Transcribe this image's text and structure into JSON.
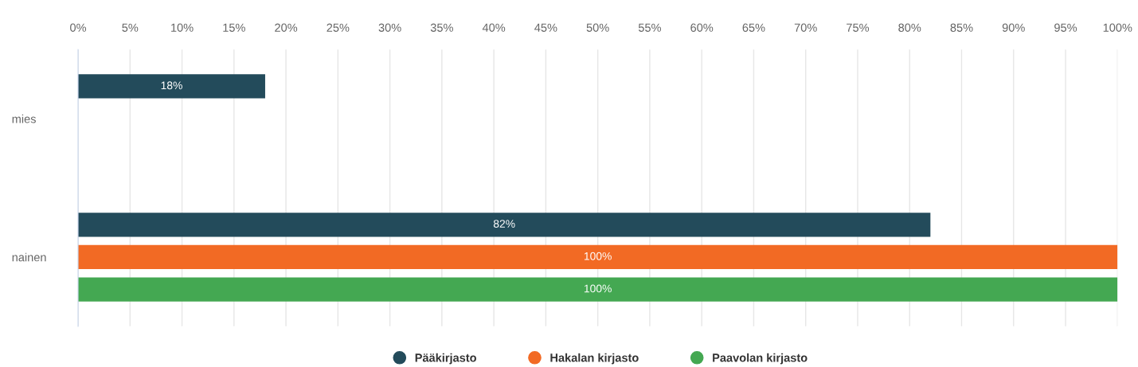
{
  "chart_data": {
    "type": "bar",
    "orientation": "horizontal",
    "categories": [
      "mies",
      "nainen"
    ],
    "series": [
      {
        "name": "Pääkirjasto",
        "color": "#234b5b",
        "values": [
          18,
          82
        ],
        "value_labels": [
          "18%",
          "82%"
        ]
      },
      {
        "name": "Hakalan kirjasto",
        "color": "#f26a24",
        "values": [
          null,
          100
        ],
        "value_labels": [
          null,
          "100%"
        ]
      },
      {
        "name": "Paavolan kirjasto",
        "color": "#44a852",
        "values": [
          null,
          100
        ],
        "value_labels": [
          null,
          "100%"
        ]
      }
    ],
    "xlim": [
      0,
      100
    ],
    "xticks": [
      {
        "value": 0,
        "label": "0%"
      },
      {
        "value": 5,
        "label": "5%"
      },
      {
        "value": 10,
        "label": "10%"
      },
      {
        "value": 15,
        "label": "15%"
      },
      {
        "value": 20,
        "label": "20%"
      },
      {
        "value": 25,
        "label": "25%"
      },
      {
        "value": 30,
        "label": "30%"
      },
      {
        "value": 35,
        "label": "35%"
      },
      {
        "value": 40,
        "label": "40%"
      },
      {
        "value": 45,
        "label": "45%"
      },
      {
        "value": 50,
        "label": "50%"
      },
      {
        "value": 55,
        "label": "55%"
      },
      {
        "value": 60,
        "label": "60%"
      },
      {
        "value": 65,
        "label": "65%"
      },
      {
        "value": 70,
        "label": "70%"
      },
      {
        "value": 75,
        "label": "75%"
      },
      {
        "value": 80,
        "label": "80%"
      },
      {
        "value": 85,
        "label": "85%"
      },
      {
        "value": 90,
        "label": "90%"
      },
      {
        "value": 95,
        "label": "95%"
      },
      {
        "value": 100,
        "label": "100%"
      }
    ],
    "grid": "x",
    "legend": "bottom"
  }
}
